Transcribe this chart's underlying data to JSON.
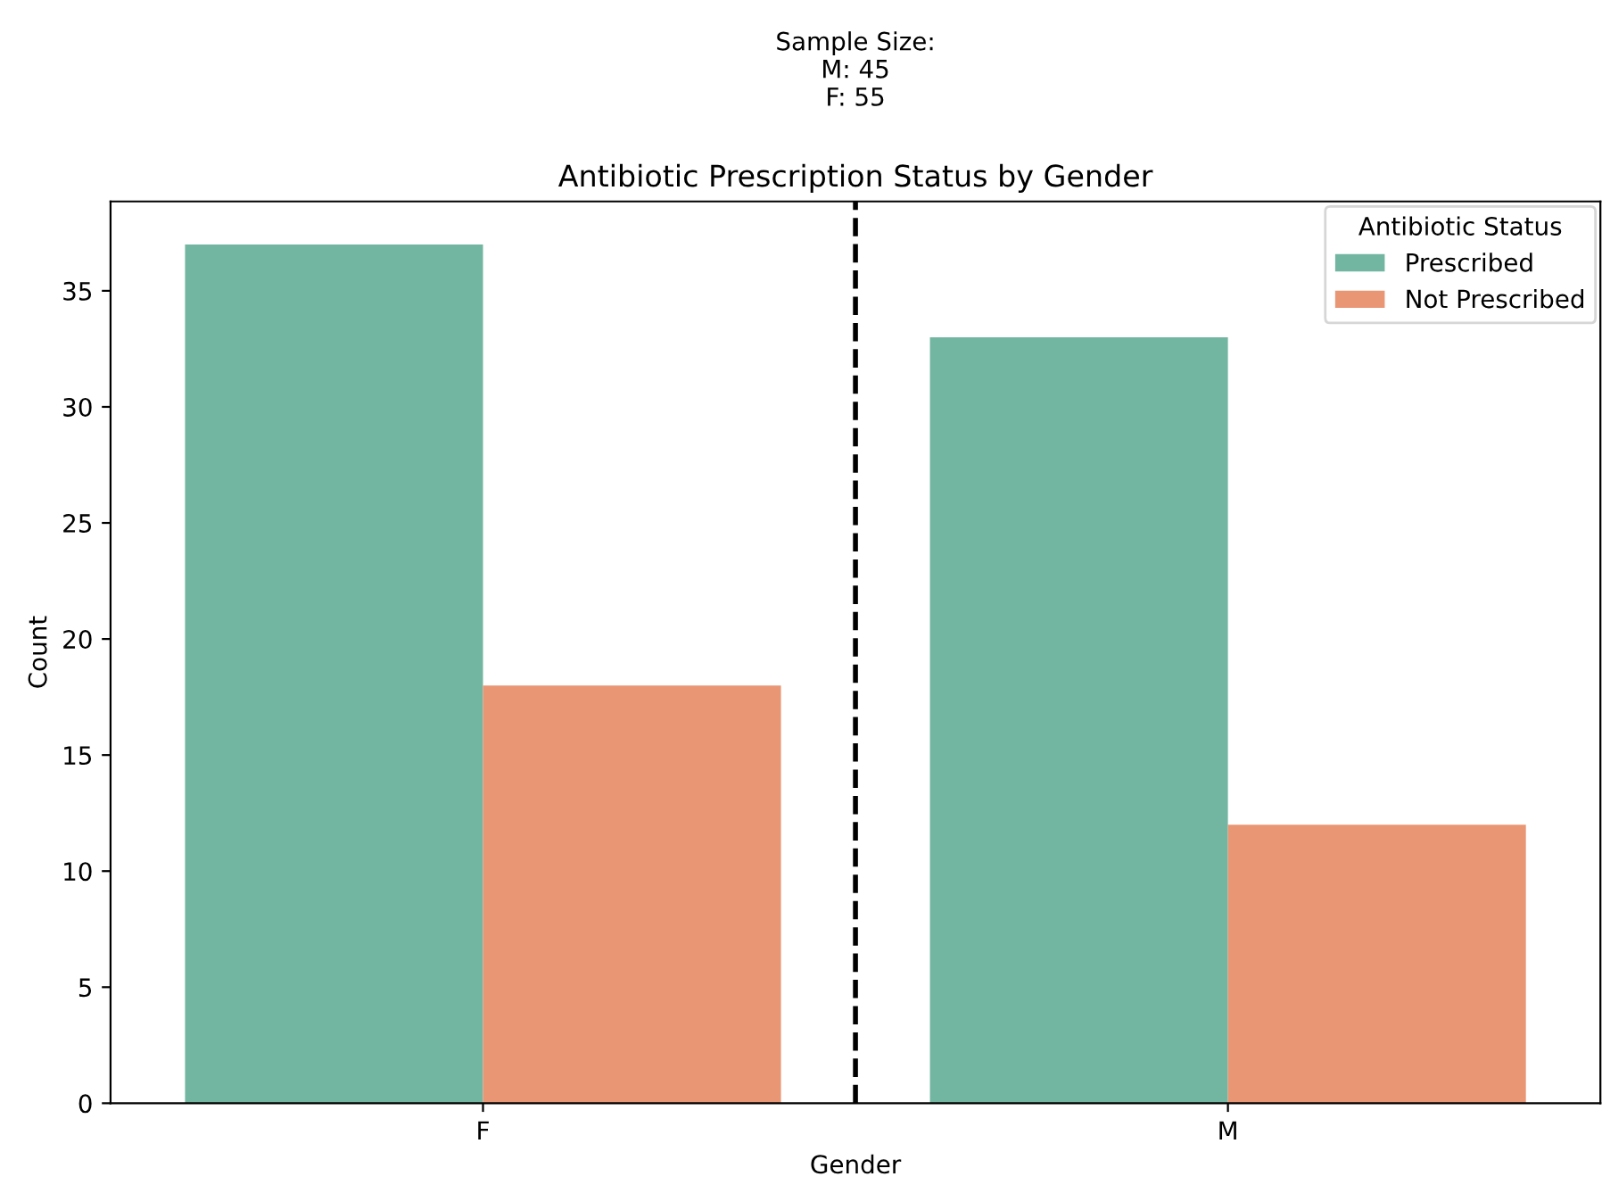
{
  "chart_data": {
    "type": "bar",
    "title": "Antibiotic Prescription Status by Gender",
    "xlabel": "Gender",
    "ylabel": "Count",
    "categories": [
      "F",
      "M"
    ],
    "series": [
      {
        "name": "Prescribed",
        "color": "#72b6a1",
        "values": [
          37,
          33
        ]
      },
      {
        "name": "Not Prescribed",
        "color": "#e99675",
        "values": [
          18,
          12
        ]
      }
    ],
    "ylim": [
      0,
      38.85
    ],
    "yticks": [
      0,
      5,
      10,
      15,
      20,
      25,
      30,
      35
    ],
    "legend_title": "Antibiotic Status",
    "legend": "top right",
    "grid": false,
    "annotations": [
      "Sample Size:\nM: 45\nF: 55"
    ]
  }
}
